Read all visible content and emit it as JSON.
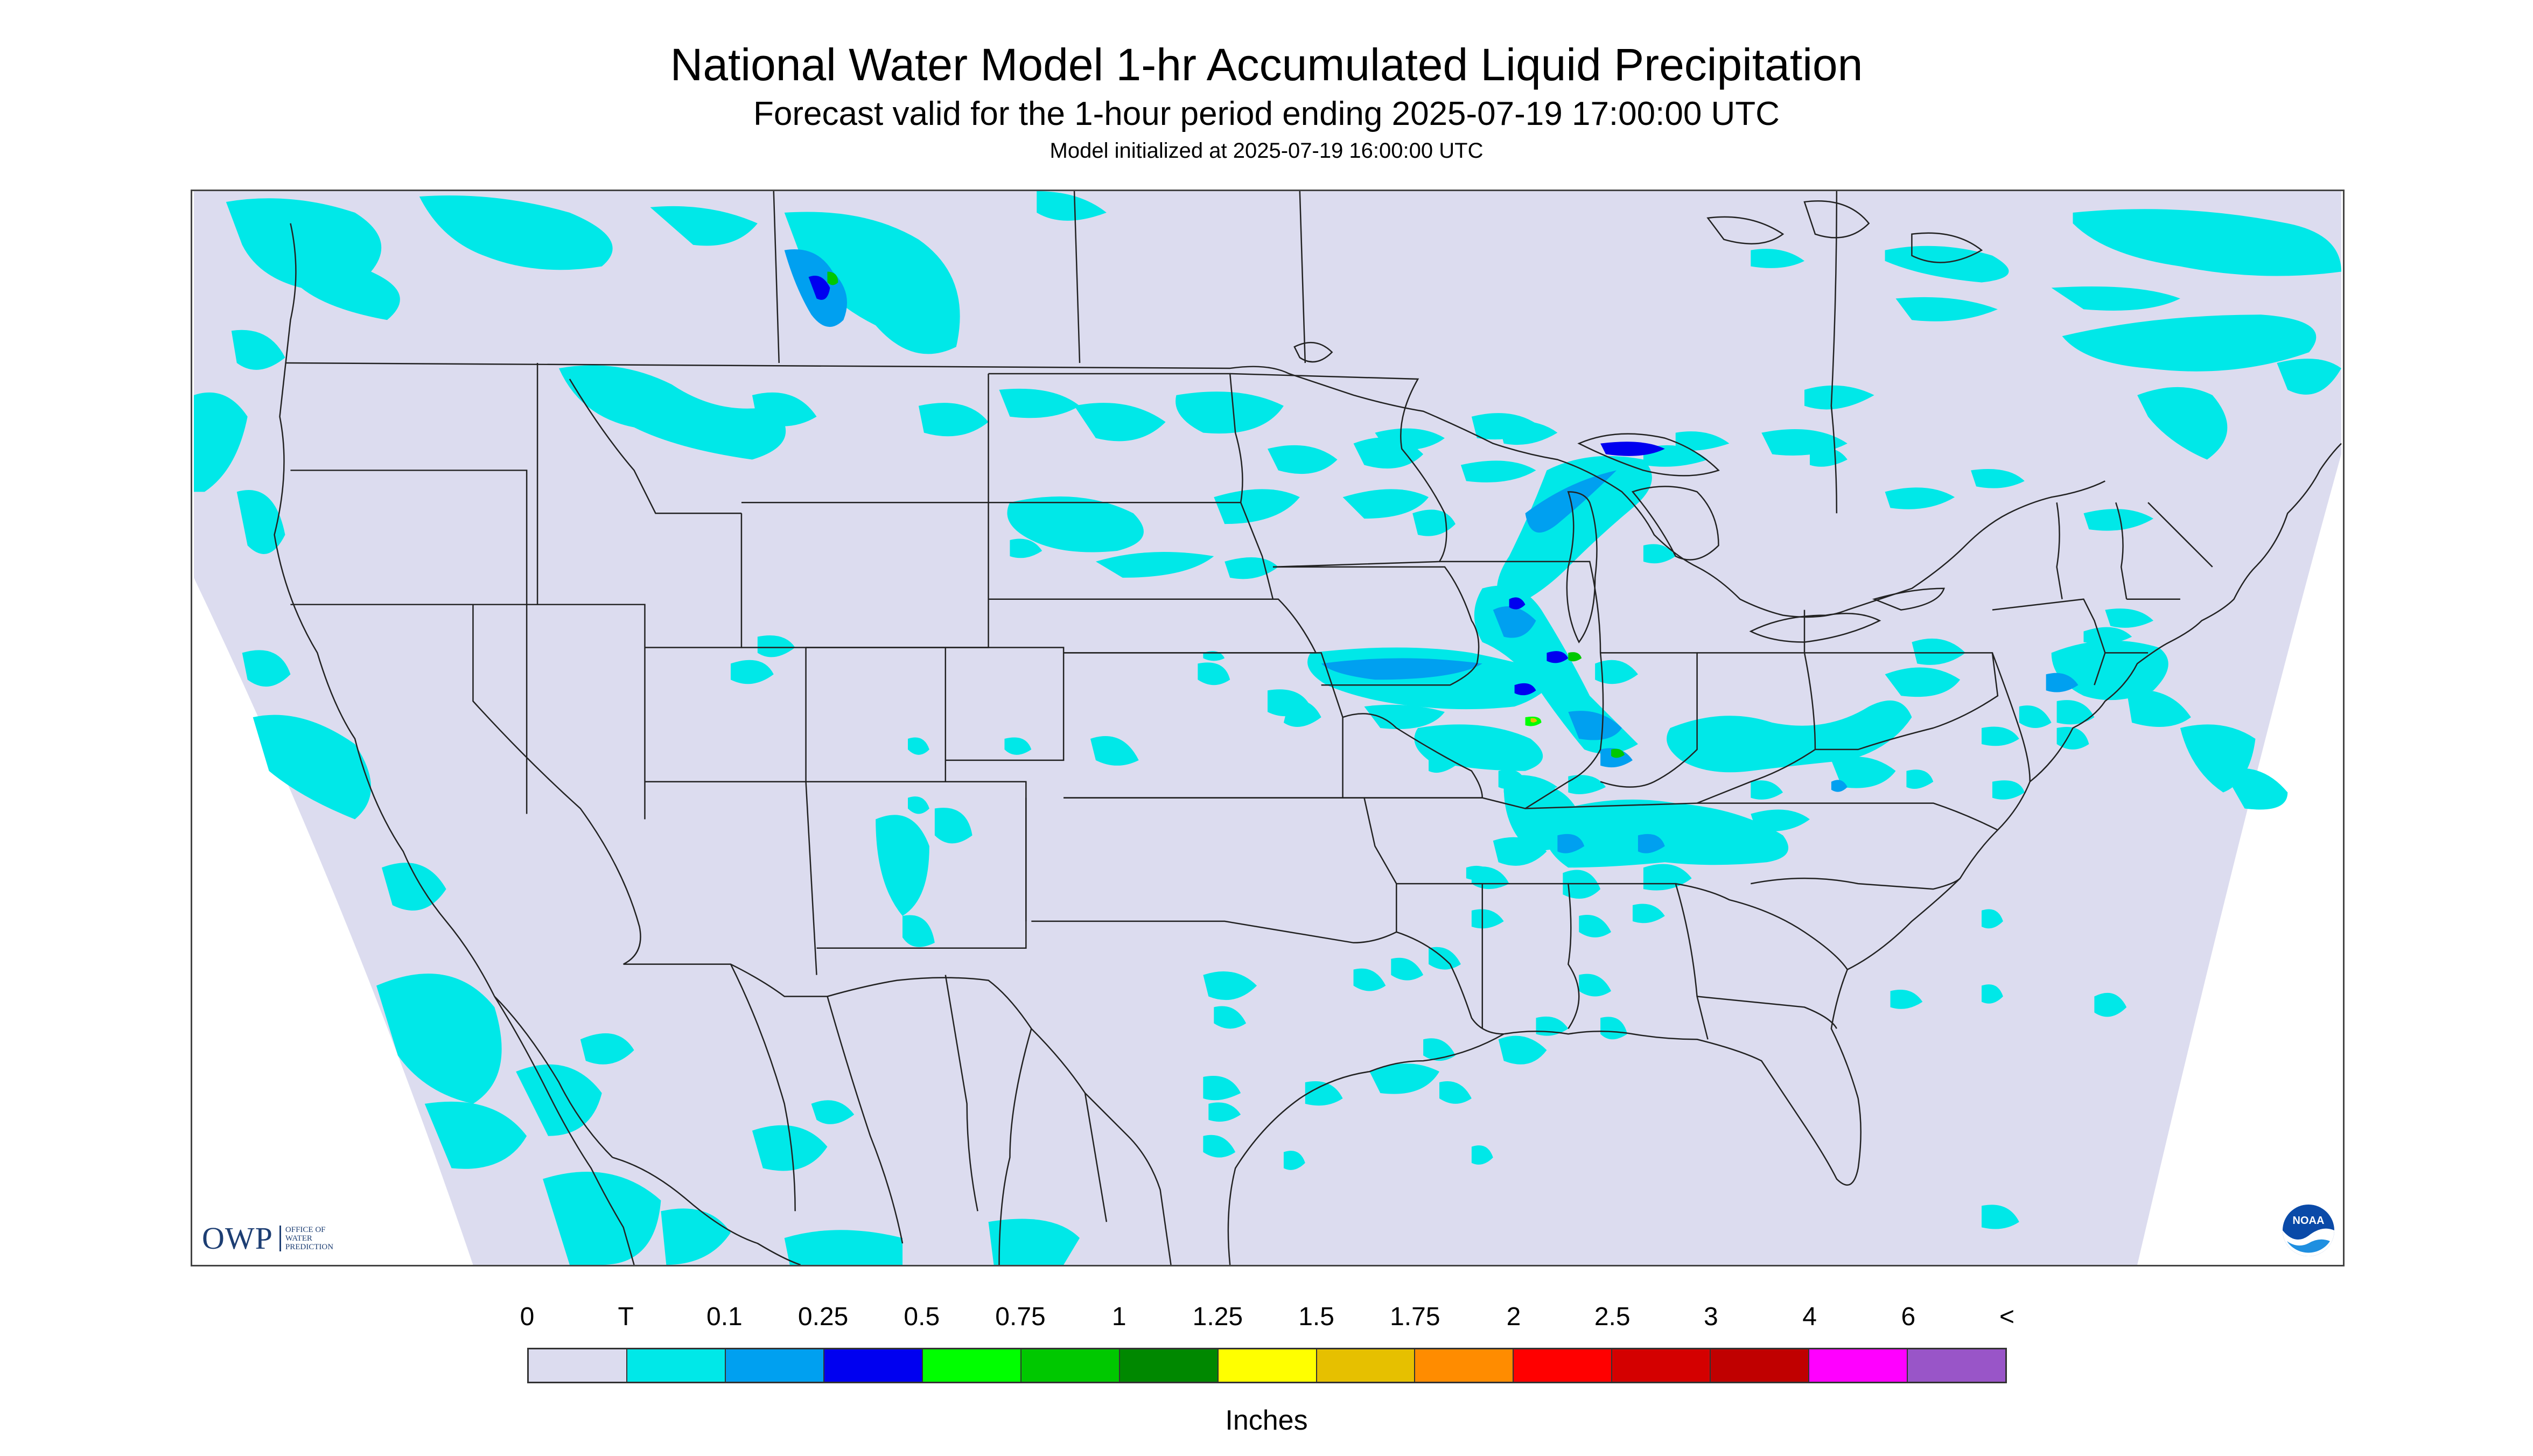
{
  "header": {
    "title": "National Water Model 1-hr Accumulated Liquid Precipitation",
    "subtitle": "Forecast valid for the 1-hour period ending 2025-07-19 17:00:00 UTC",
    "init_line": "Model initialized at 2025-07-19 16:00:00 UTC"
  },
  "map": {
    "background_color": "#dcdcef",
    "boundary_color": "#222222",
    "logos": {
      "owp": "OWP",
      "owp_subtitle": [
        "OFFICE OF",
        "WATER",
        "PREDICTION"
      ],
      "noaa": "NOAA",
      "noaa_icon": "noaa-logo-icon"
    }
  },
  "legend": {
    "labels": [
      "0",
      "T",
      "0.1",
      "0.25",
      "0.5",
      "0.75",
      "1",
      "1.25",
      "1.5",
      "1.75",
      "2",
      "2.5",
      "3",
      "4",
      "6",
      "<"
    ],
    "colors": [
      "#dcdcef",
      "#00e8e8",
      "#00a0f0",
      "#0000f0",
      "#00ff00",
      "#00c800",
      "#008800",
      "#ffff00",
      "#e6c000",
      "#ff8c00",
      "#ff0000",
      "#d40000",
      "#c00000",
      "#ff00ff",
      "#9955c8"
    ],
    "units": "Inches"
  }
}
